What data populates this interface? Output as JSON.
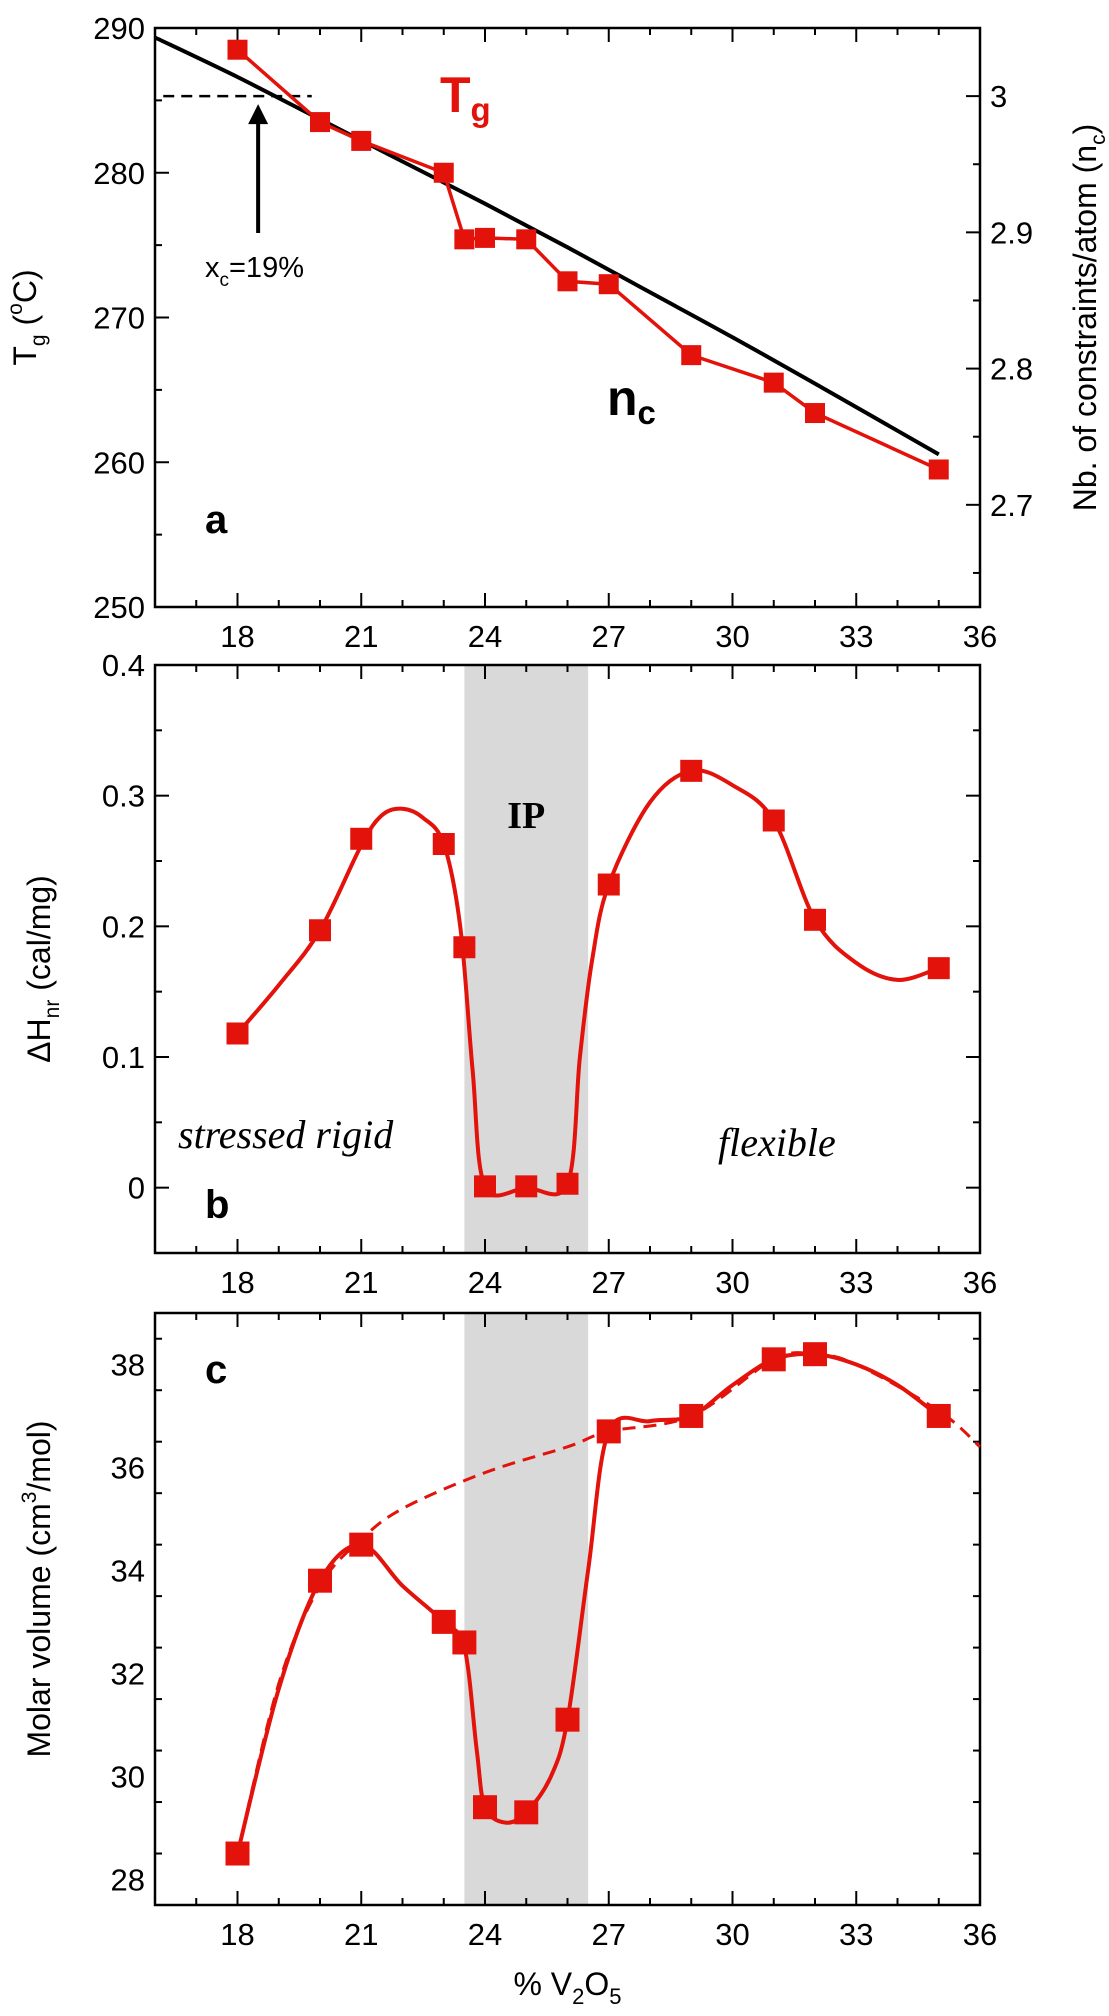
{
  "colors": {
    "series": "#e3120b",
    "curve": "#000000",
    "band": "#d9d9d9"
  },
  "chart_data": [
    {
      "type": "line",
      "panel": "a",
      "panel_label": "a",
      "xlabel": "",
      "ylabel": "T_g (°C)",
      "ylabel_parts": [
        "T",
        "g",
        " (",
        "o",
        "C)"
      ],
      "y2label": "Nb. of constraints/atom (n_c)",
      "y2label_parts": [
        "Nb. of constraints/atom (n",
        "c",
        ")"
      ],
      "xlim": [
        16,
        36
      ],
      "ylim": [
        250,
        290
      ],
      "y2lim": [
        2.625,
        3.05
      ],
      "xticks": [
        18,
        21,
        24,
        27,
        30,
        33,
        36
      ],
      "yticks": [
        250,
        260,
        270,
        280,
        290
      ],
      "y2ticks": [
        2.7,
        2.8,
        2.9,
        3.0
      ],
      "y2ticklabels": [
        "2.7",
        "2.8",
        "2.9",
        "3"
      ],
      "series": [
        {
          "name": "Tg",
          "label_parts": [
            "T",
            "g"
          ],
          "axis": "left",
          "marker": "square",
          "points": [
            [
              18,
              288.5
            ],
            [
              20,
              283.5
            ],
            [
              21,
              282.2
            ],
            [
              23,
              280.0
            ],
            [
              23.5,
              275.4
            ],
            [
              24,
              275.5
            ],
            [
              25,
              275.4
            ],
            [
              26,
              272.5
            ],
            [
              27,
              272.3
            ],
            [
              29,
              267.4
            ],
            [
              31,
              265.5
            ],
            [
              32,
              263.4
            ],
            [
              35,
              259.5
            ]
          ]
        },
        {
          "name": "nc",
          "label_parts": [
            "n",
            "c"
          ],
          "axis": "right",
          "marker": "none",
          "points": [
            [
              16,
              3.043
            ],
            [
              18,
              3.014
            ],
            [
              20,
              2.983
            ],
            [
              22,
              2.952
            ],
            [
              24,
              2.921
            ],
            [
              26,
              2.889
            ],
            [
              28,
              2.856
            ],
            [
              30,
              2.823
            ],
            [
              32,
              2.789
            ],
            [
              35,
              2.737
            ]
          ]
        }
      ],
      "annotations": {
        "threshold_y2": 3.0,
        "threshold_x": [
          16.2,
          19.8
        ],
        "critical_x": 18.5,
        "critical_label_parts": [
          "x",
          "c",
          "=19%"
        ]
      }
    },
    {
      "type": "line",
      "panel": "b",
      "panel_label": "b",
      "xlabel": "",
      "ylabel": "ΔH_nr (cal/mg)",
      "ylabel_parts": [
        "ΔH",
        "nr",
        " (cal/mg)"
      ],
      "xlim": [
        16,
        36
      ],
      "ylim": [
        -0.05,
        0.4
      ],
      "xticks": [
        18,
        21,
        24,
        27,
        30,
        33,
        36
      ],
      "yticks": [
        0,
        0.1,
        0.2,
        0.3,
        0.4
      ],
      "yticklabels": [
        "0",
        "0.1",
        "0.2",
        "0.3",
        "0.4"
      ],
      "band": [
        23.5,
        26.5
      ],
      "series": [
        {
          "name": "ΔHnr",
          "marker": "square",
          "points": [
            [
              18,
              0.118
            ],
            [
              20,
              0.197
            ],
            [
              21,
              0.267
            ],
            [
              23,
              0.263
            ],
            [
              23.5,
              0.184
            ],
            [
              24,
              0.001
            ],
            [
              25,
              0.001
            ],
            [
              26,
              0.003
            ],
            [
              27,
              0.232
            ],
            [
              29,
              0.319
            ],
            [
              31,
              0.281
            ],
            [
              32,
              0.205
            ],
            [
              35,
              0.168
            ]
          ],
          "curve": [
            [
              18,
              0.118
            ],
            [
              19,
              0.155
            ],
            [
              20,
              0.197
            ],
            [
              21,
              0.262
            ],
            [
              21.5,
              0.285
            ],
            [
              22,
              0.29
            ],
            [
              22.5,
              0.283
            ],
            [
              23,
              0.263
            ],
            [
              23.4,
              0.2
            ],
            [
              23.7,
              0.09
            ],
            [
              24,
              0.001
            ],
            [
              25,
              0.0
            ],
            [
              26,
              0.003
            ],
            [
              26.3,
              0.1
            ],
            [
              26.6,
              0.175
            ],
            [
              27,
              0.232
            ],
            [
              28,
              0.295
            ],
            [
              29,
              0.319
            ],
            [
              30,
              0.308
            ],
            [
              31,
              0.281
            ],
            [
              32,
              0.205
            ],
            [
              33,
              0.172
            ],
            [
              34,
              0.159
            ],
            [
              35,
              0.168
            ]
          ]
        }
      ],
      "region_labels": {
        "left": "stressed rigid",
        "middle": "IP",
        "right": "flexible"
      }
    },
    {
      "type": "line",
      "panel": "c",
      "panel_label": "c",
      "xlabel": "% V2O5",
      "xlabel_parts": [
        "% V",
        "2",
        "O",
        "5"
      ],
      "ylabel": "Molar volume (cm3/mol)",
      "ylabel_parts": [
        "Molar volume (cm",
        "3",
        "/mol)"
      ],
      "xlim": [
        16,
        36
      ],
      "ylim": [
        27.5,
        39
      ],
      "xticks": [
        18,
        21,
        24,
        27,
        30,
        33,
        36
      ],
      "yticks": [
        28,
        30,
        32,
        34,
        36,
        38
      ],
      "band": [
        23.5,
        26.5
      ],
      "series": [
        {
          "name": "Molar volume",
          "marker": "square",
          "points": [
            [
              18,
              28.5
            ],
            [
              20,
              33.8
            ],
            [
              21,
              34.5
            ],
            [
              23,
              33.0
            ],
            [
              23.5,
              32.6
            ],
            [
              24,
              29.4
            ],
            [
              25,
              29.3
            ],
            [
              26,
              31.1
            ],
            [
              27,
              36.7
            ],
            [
              29,
              37.0
            ],
            [
              31,
              38.1
            ],
            [
              32,
              38.2
            ],
            [
              35,
              37.0
            ]
          ],
          "curve": [
            [
              18,
              28.5
            ],
            [
              19,
              31.7
            ],
            [
              20,
              33.8
            ],
            [
              21,
              34.5
            ],
            [
              22,
              33.7
            ],
            [
              23,
              33.0
            ],
            [
              23.5,
              32.5
            ],
            [
              23.8,
              30.5
            ],
            [
              24,
              29.4
            ],
            [
              24.5,
              29.1
            ],
            [
              25,
              29.3
            ],
            [
              25.6,
              30.0
            ],
            [
              26,
              31.1
            ],
            [
              26.5,
              34.0
            ],
            [
              27,
              36.7
            ],
            [
              28,
              36.9
            ],
            [
              29,
              37.0
            ],
            [
              30,
              37.6
            ],
            [
              31,
              38.1
            ],
            [
              32,
              38.2
            ],
            [
              33,
              38.0
            ],
            [
              34,
              37.6
            ],
            [
              35,
              37.0
            ]
          ],
          "dashed_curve": [
            [
              18,
              28.5
            ],
            [
              19,
              31.8
            ],
            [
              20,
              33.7
            ],
            [
              21,
              34.6
            ],
            [
              22,
              35.2
            ],
            [
              24,
              35.9
            ],
            [
              26,
              36.4
            ],
            [
              27,
              36.7
            ],
            [
              29,
              37.0
            ],
            [
              31,
              38.1
            ],
            [
              32,
              38.2
            ],
            [
              33,
              38.0
            ],
            [
              35,
              37.1
            ],
            [
              36,
              36.4
            ]
          ]
        }
      ]
    }
  ]
}
